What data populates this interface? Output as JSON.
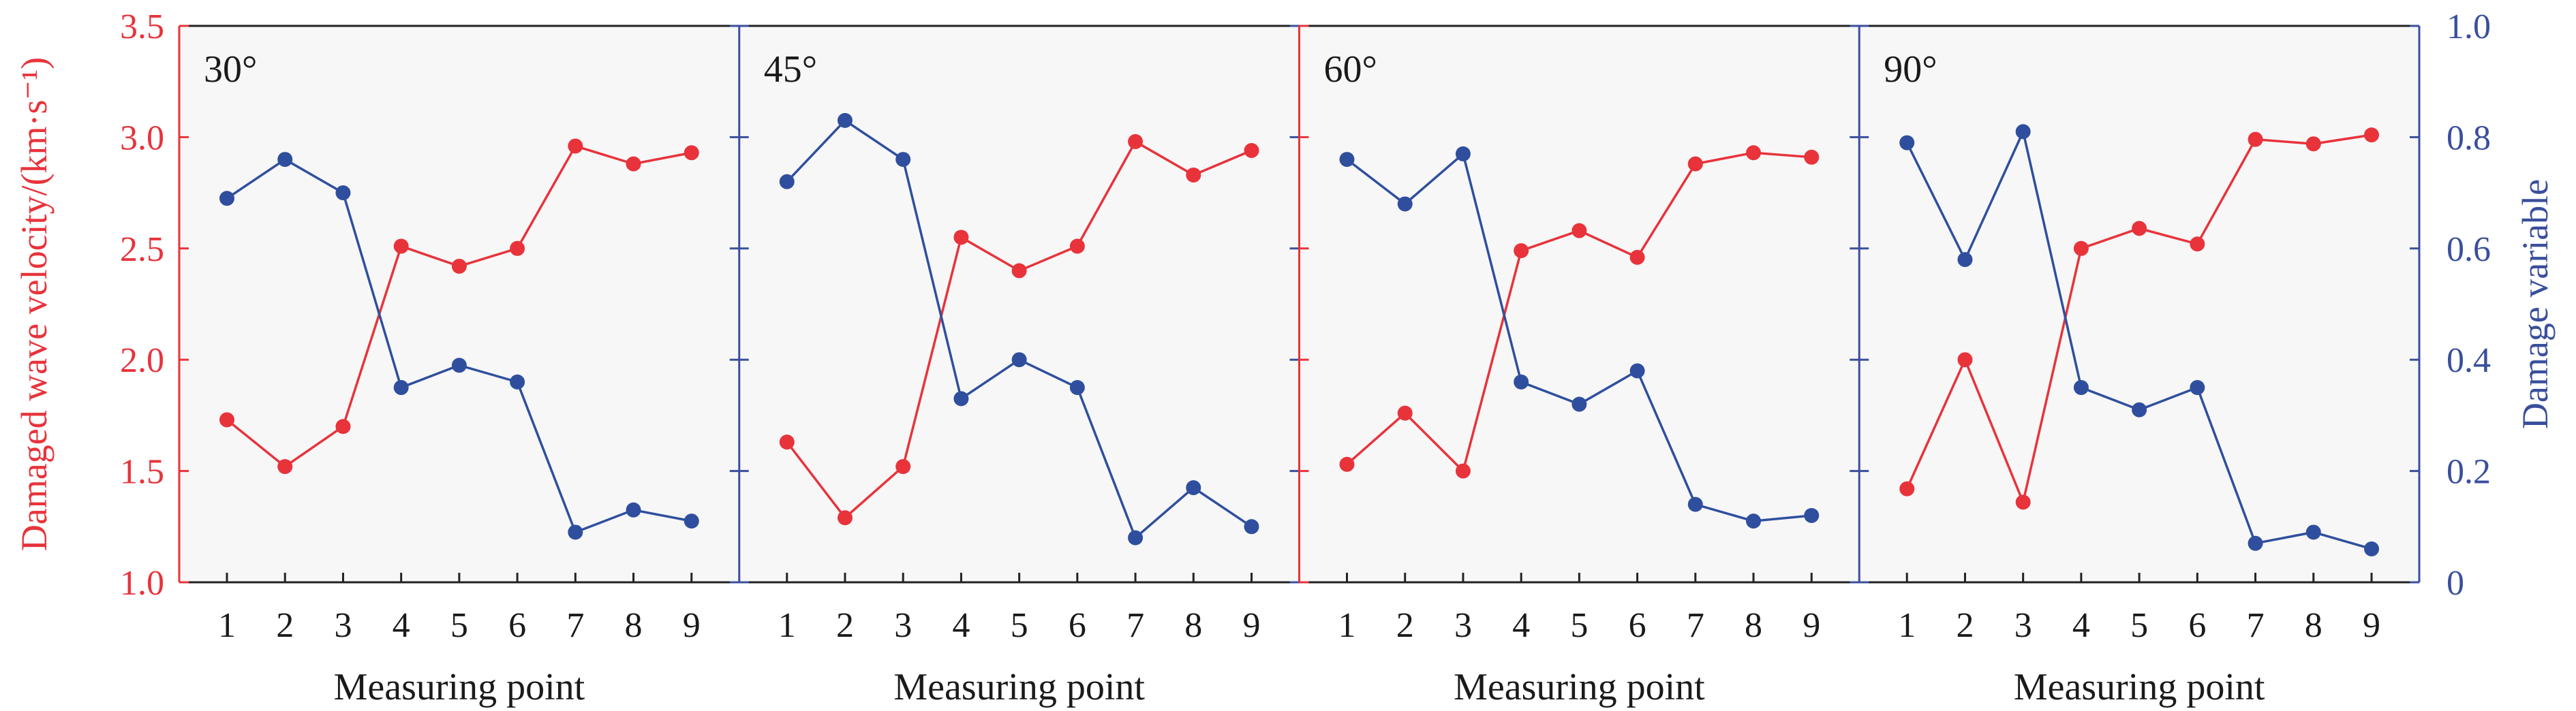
{
  "colors": {
    "velocity": "#e8333b",
    "damage": "#2f4f9e",
    "left_axis": "#e8333b",
    "right_axis": "#3a4f9c",
    "frame": "#222222",
    "panel_bg": "#f7f7f7",
    "text": "#1a1a1a"
  },
  "chart_data": {
    "type": "line",
    "ylabel_left": "Damaged wave velocity/(km·s⁻¹)",
    "ylabel_right": "Damage variable",
    "xlabel": "Measuring point",
    "x": [
      1,
      2,
      3,
      4,
      5,
      6,
      7,
      8,
      9
    ],
    "ylim_left": [
      1.0,
      3.5
    ],
    "yticks_left": [
      "1.0",
      "1.5",
      "2.0",
      "2.5",
      "3.0",
      "3.5"
    ],
    "ylim_right": [
      0,
      1.0
    ],
    "yticks_right": [
      "0",
      "0.2",
      "0.4",
      "0.6",
      "0.8",
      "1.0"
    ],
    "panels": [
      {
        "label": "30°",
        "velocity": [
          1.73,
          1.52,
          1.7,
          2.51,
          2.42,
          2.5,
          2.96,
          2.88,
          2.93
        ],
        "damage": [
          0.69,
          0.76,
          0.7,
          0.35,
          0.39,
          0.36,
          0.09,
          0.13,
          0.11
        ]
      },
      {
        "label": "45°",
        "velocity": [
          1.63,
          1.29,
          1.52,
          2.55,
          2.4,
          2.51,
          2.98,
          2.83,
          2.94
        ],
        "damage": [
          0.72,
          0.83,
          0.76,
          0.33,
          0.4,
          0.35,
          0.08,
          0.17,
          0.1
        ]
      },
      {
        "label": "60°",
        "velocity": [
          1.53,
          1.76,
          1.5,
          2.49,
          2.58,
          2.46,
          2.88,
          2.93,
          2.91
        ],
        "damage": [
          0.76,
          0.68,
          0.77,
          0.36,
          0.32,
          0.38,
          0.14,
          0.11,
          0.12
        ]
      },
      {
        "label": "90°",
        "velocity": [
          1.42,
          2.0,
          1.36,
          2.5,
          2.59,
          2.52,
          2.99,
          2.97,
          3.01
        ],
        "damage": [
          0.79,
          0.58,
          0.81,
          0.35,
          0.31,
          0.35,
          0.07,
          0.09,
          0.06
        ]
      }
    ]
  }
}
